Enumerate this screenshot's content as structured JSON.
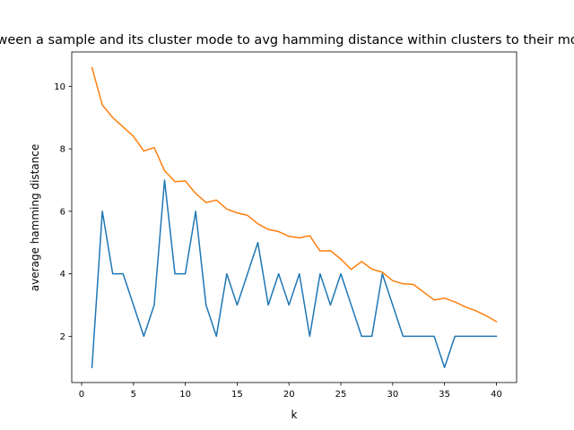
{
  "chart_data": {
    "type": "line",
    "title": "median hamming distance between a sample and its cluster mode to avg hamming distance within clusters to their modes across all clusters for each k",
    "xlabel": "k",
    "ylabel": "average hamming distance",
    "xlim": [
      -0.95,
      41.95
    ],
    "ylim": [
      0.52,
      11.1
    ],
    "xticks": [
      0,
      5,
      10,
      15,
      20,
      25,
      30,
      35,
      40
    ],
    "yticks": [
      2,
      4,
      6,
      8,
      10
    ],
    "grid": false,
    "legend": "none",
    "x": [
      1,
      2,
      3,
      4,
      5,
      6,
      7,
      8,
      9,
      10,
      11,
      12,
      13,
      14,
      15,
      16,
      17,
      18,
      19,
      20,
      21,
      22,
      23,
      24,
      25,
      26,
      27,
      28,
      29,
      30,
      31,
      32,
      33,
      34,
      35,
      36,
      37,
      38,
      39,
      40
    ],
    "series": [
      {
        "color": "#1f77b4",
        "values": [
          1,
          6,
          4,
          4,
          3,
          2,
          3,
          7,
          4,
          4,
          6,
          3,
          2,
          4,
          3,
          4,
          5,
          3,
          4,
          3,
          4,
          2,
          4,
          3,
          4,
          3,
          2,
          2,
          4,
          3,
          2,
          2,
          2,
          2,
          1,
          2,
          2,
          2,
          2,
          2
        ]
      },
      {
        "color": "#ff7f0e",
        "values": [
          10.6,
          9.4,
          9.0,
          8.7,
          8.4,
          7.93,
          8.04,
          7.3,
          6.95,
          6.97,
          6.57,
          6.28,
          6.36,
          6.07,
          5.95,
          5.87,
          5.6,
          5.42,
          5.35,
          5.2,
          5.15,
          5.22,
          4.73,
          4.74,
          4.47,
          4.14,
          4.39,
          4.15,
          4.05,
          3.78,
          3.68,
          3.66,
          3.41,
          3.16,
          3.22,
          3.1,
          2.94,
          2.82,
          2.66,
          2.47
        ]
      }
    ]
  }
}
